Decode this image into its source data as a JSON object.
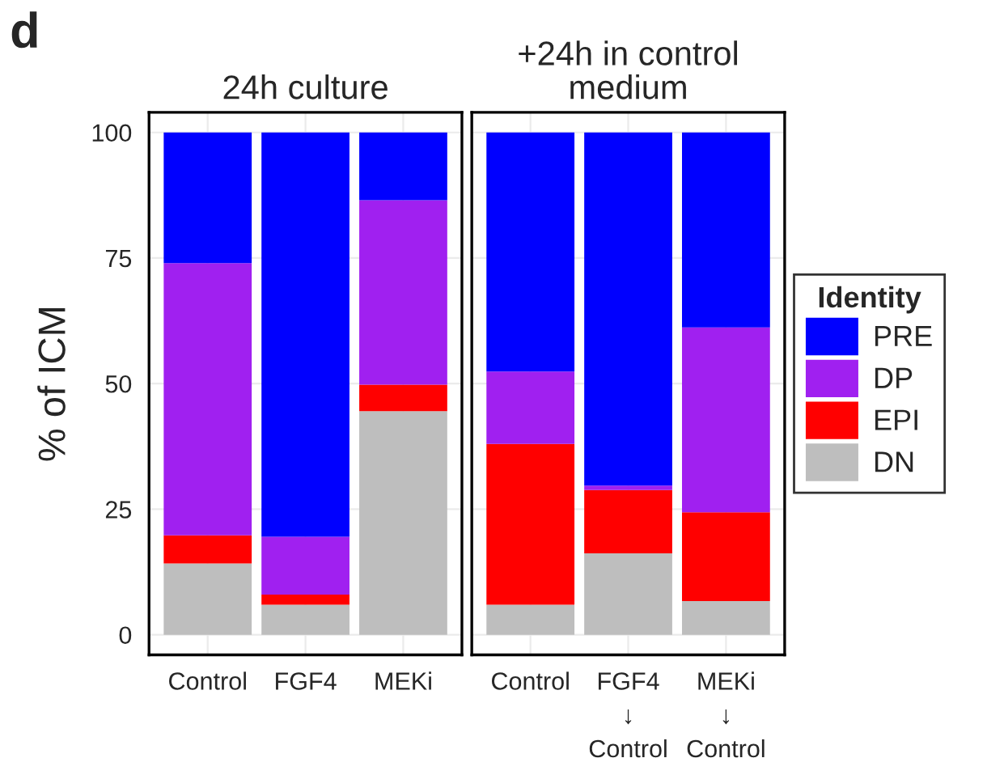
{
  "chart_data": [
    {
      "type": "bar",
      "title": "24h culture",
      "ylabel": "% of ICM",
      "annotations": [
        "d"
      ],
      "categories": [
        "Control",
        "FGF4",
        "MEKi"
      ],
      "stacked": true,
      "ylim": [
        -4,
        104
      ],
      "yticks": [
        0,
        25,
        50,
        75,
        100
      ],
      "grid": true,
      "legend": false,
      "series": [
        {
          "color": "#bebebe",
          "values": [
            14.2,
            6.0,
            44.5
          ]
        },
        {
          "color": "#ff0000",
          "values": [
            5.6,
            2.0,
            5.3
          ]
        },
        {
          "color": "#a020f0",
          "values": [
            54.2,
            11.5,
            36.7
          ]
        },
        {
          "color": "#0000ff",
          "values": [
            26.0,
            80.5,
            13.5
          ]
        }
      ]
    },
    {
      "type": "bar",
      "title": "+24h in control\nmedium",
      "categories": [
        "Control",
        "FGF4\n↓\nControl",
        "MEKi\n↓\nControl"
      ],
      "stacked": true,
      "ylim": [
        -4,
        104
      ],
      "yticks": [
        0,
        25,
        50,
        75,
        100
      ],
      "tick_labels": "x",
      "grid": true,
      "legend": "right",
      "legend_title": "Identity",
      "series": [
        {
          "name": "DN",
          "color": "#bebebe",
          "values": [
            6.0,
            16.2,
            6.7
          ]
        },
        {
          "name": "EPI",
          "color": "#ff0000",
          "values": [
            32.0,
            12.6,
            17.7
          ]
        },
        {
          "name": "DP",
          "color": "#a020f0",
          "values": [
            14.4,
            0.9,
            36.8
          ]
        },
        {
          "name": "PRE",
          "color": "#0000ff",
          "values": [
            47.6,
            70.3,
            38.8
          ]
        }
      ]
    }
  ]
}
